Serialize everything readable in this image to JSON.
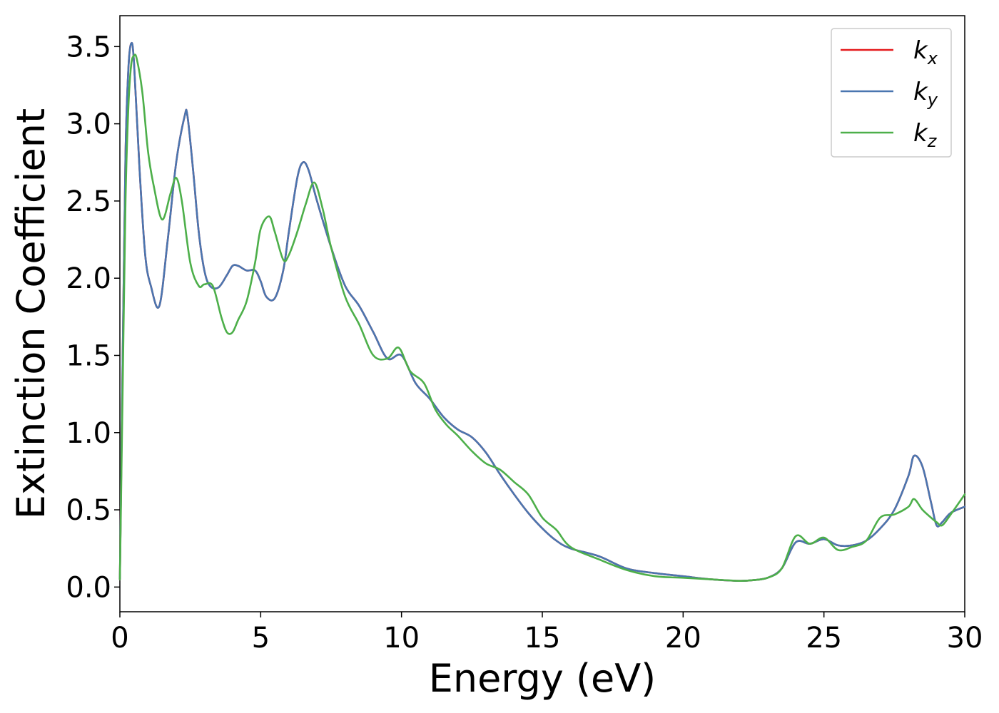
{
  "chart_data": {
    "type": "line",
    "title": "",
    "xlabel": "Energy (eV)",
    "ylabel": "Extinction Coefficient",
    "xlim": [
      0,
      30
    ],
    "ylim": [
      -0.16,
      3.7
    ],
    "xticks": [
      0,
      5,
      10,
      15,
      20,
      25,
      30
    ],
    "xtick_labels": [
      "0",
      "5",
      "10",
      "15",
      "20",
      "25",
      "30"
    ],
    "yticks": [
      0.0,
      0.5,
      1.0,
      1.5,
      2.0,
      2.5,
      3.0,
      3.5
    ],
    "ytick_labels": [
      "0.0",
      "0.5",
      "1.0",
      "1.5",
      "2.0",
      "2.5",
      "3.0",
      "3.5"
    ],
    "grid": false,
    "legend_position": "top-right",
    "series": [
      {
        "name": "k",
        "subscript": "x",
        "color": "#e41a1c",
        "x": [
          0,
          0.1,
          0.2,
          0.3,
          0.4,
          0.5,
          0.7,
          0.9,
          1.1,
          1.4,
          1.7,
          2.0,
          2.3,
          2.4,
          2.6,
          2.8,
          3.0,
          3.2,
          3.5,
          3.8,
          4.0,
          4.2,
          4.5,
          4.8,
          5.0,
          5.2,
          5.5,
          5.8,
          6.0,
          6.3,
          6.5,
          6.7,
          7.0,
          7.5,
          8.0,
          8.5,
          9.0,
          9.5,
          10.0,
          10.5,
          11.0,
          11.5,
          12.0,
          12.5,
          13.0,
          13.5,
          14.0,
          14.5,
          15.0,
          15.5,
          16.0,
          17.0,
          18.0,
          19.0,
          20.0,
          21.0,
          22.0,
          22.5,
          23.0,
          23.5,
          24.0,
          24.5,
          25.0,
          25.5,
          26.0,
          26.5,
          27.0,
          27.5,
          28.0,
          28.2,
          28.5,
          28.8,
          29.0,
          29.2,
          29.5,
          30.0
        ],
        "values": [
          0.05,
          1.5,
          2.8,
          3.35,
          3.52,
          3.4,
          2.7,
          2.15,
          1.95,
          1.82,
          2.25,
          2.75,
          3.05,
          3.05,
          2.7,
          2.3,
          2.05,
          1.95,
          1.94,
          2.02,
          2.08,
          2.08,
          2.05,
          2.05,
          1.98,
          1.88,
          1.87,
          2.05,
          2.3,
          2.65,
          2.75,
          2.7,
          2.5,
          2.2,
          1.95,
          1.82,
          1.65,
          1.48,
          1.5,
          1.32,
          1.22,
          1.1,
          1.02,
          0.97,
          0.87,
          0.73,
          0.6,
          0.48,
          0.38,
          0.3,
          0.25,
          0.2,
          0.12,
          0.09,
          0.07,
          0.05,
          0.04,
          0.045,
          0.06,
          0.12,
          0.29,
          0.28,
          0.31,
          0.27,
          0.27,
          0.3,
          0.38,
          0.5,
          0.72,
          0.85,
          0.78,
          0.55,
          0.4,
          0.42,
          0.48,
          0.52
        ]
      },
      {
        "name": "k",
        "subscript": "y",
        "color": "#4a76b0",
        "x": [
          0,
          0.1,
          0.2,
          0.3,
          0.4,
          0.5,
          0.7,
          0.9,
          1.1,
          1.4,
          1.7,
          2.0,
          2.3,
          2.4,
          2.6,
          2.8,
          3.0,
          3.2,
          3.5,
          3.8,
          4.0,
          4.2,
          4.5,
          4.8,
          5.0,
          5.2,
          5.5,
          5.8,
          6.0,
          6.3,
          6.5,
          6.7,
          7.0,
          7.5,
          8.0,
          8.5,
          9.0,
          9.5,
          10.0,
          10.5,
          11.0,
          11.5,
          12.0,
          12.5,
          13.0,
          13.5,
          14.0,
          14.5,
          15.0,
          15.5,
          16.0,
          17.0,
          18.0,
          19.0,
          20.0,
          21.0,
          22.0,
          22.5,
          23.0,
          23.5,
          24.0,
          24.5,
          25.0,
          25.5,
          26.0,
          26.5,
          27.0,
          27.5,
          28.0,
          28.2,
          28.5,
          28.8,
          29.0,
          29.2,
          29.5,
          30.0
        ],
        "values": [
          0.05,
          1.5,
          2.8,
          3.35,
          3.52,
          3.4,
          2.7,
          2.15,
          1.95,
          1.82,
          2.25,
          2.75,
          3.05,
          3.05,
          2.7,
          2.3,
          2.05,
          1.95,
          1.94,
          2.02,
          2.08,
          2.08,
          2.05,
          2.05,
          1.98,
          1.88,
          1.87,
          2.05,
          2.3,
          2.65,
          2.75,
          2.7,
          2.5,
          2.2,
          1.95,
          1.82,
          1.65,
          1.48,
          1.5,
          1.32,
          1.22,
          1.1,
          1.02,
          0.97,
          0.87,
          0.73,
          0.6,
          0.48,
          0.38,
          0.3,
          0.25,
          0.2,
          0.12,
          0.09,
          0.07,
          0.05,
          0.04,
          0.045,
          0.06,
          0.12,
          0.29,
          0.28,
          0.31,
          0.27,
          0.27,
          0.3,
          0.38,
          0.5,
          0.72,
          0.85,
          0.78,
          0.55,
          0.4,
          0.42,
          0.48,
          0.52
        ]
      },
      {
        "name": "k",
        "subscript": "z",
        "color": "#4daf4a",
        "x": [
          0,
          0.1,
          0.2,
          0.3,
          0.4,
          0.5,
          0.6,
          0.8,
          1.0,
          1.2,
          1.5,
          1.8,
          2.0,
          2.2,
          2.5,
          2.8,
          3.0,
          3.3,
          3.6,
          3.8,
          4.0,
          4.2,
          4.5,
          4.8,
          5.0,
          5.3,
          5.5,
          5.8,
          6.0,
          6.3,
          6.6,
          6.9,
          7.2,
          7.5,
          8.0,
          8.5,
          9.0,
          9.5,
          9.9,
          10.3,
          10.8,
          11.2,
          11.6,
          12.0,
          12.5,
          13.0,
          13.5,
          14.0,
          14.5,
          15.0,
          15.5,
          16.0,
          17.0,
          18.0,
          19.0,
          20.0,
          21.0,
          22.0,
          22.5,
          23.0,
          23.5,
          24.0,
          24.5,
          25.0,
          25.5,
          26.0,
          26.5,
          27.0,
          27.5,
          28.0,
          28.2,
          28.5,
          28.8,
          29.0,
          29.2,
          29.5,
          30.0
        ],
        "values": [
          0.05,
          1.3,
          2.5,
          3.1,
          3.38,
          3.44,
          3.42,
          3.2,
          2.82,
          2.6,
          2.38,
          2.55,
          2.65,
          2.5,
          2.1,
          1.95,
          1.96,
          1.95,
          1.75,
          1.65,
          1.65,
          1.73,
          1.85,
          2.1,
          2.32,
          2.4,
          2.3,
          2.12,
          2.15,
          2.3,
          2.48,
          2.62,
          2.45,
          2.2,
          1.88,
          1.7,
          1.5,
          1.48,
          1.55,
          1.4,
          1.32,
          1.15,
          1.05,
          0.98,
          0.88,
          0.8,
          0.76,
          0.68,
          0.6,
          0.45,
          0.37,
          0.26,
          0.18,
          0.11,
          0.07,
          0.06,
          0.05,
          0.04,
          0.045,
          0.06,
          0.12,
          0.33,
          0.28,
          0.32,
          0.24,
          0.26,
          0.3,
          0.45,
          0.47,
          0.52,
          0.57,
          0.5,
          0.45,
          0.42,
          0.4,
          0.47,
          0.6
        ]
      }
    ]
  }
}
